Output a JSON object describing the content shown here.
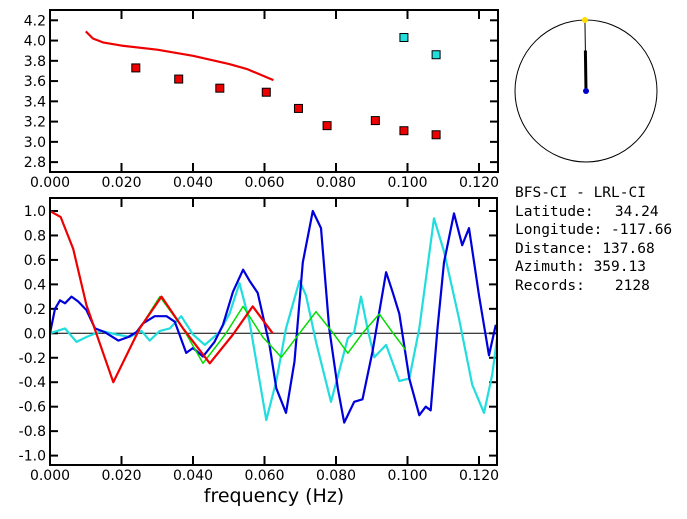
{
  "info": {
    "title": "BFS-CI  -  LRL-CI",
    "lines": [
      {
        "label": "Latitude:",
        "value": "34.24"
      },
      {
        "label": "Longitude:",
        "value": "-117.66"
      },
      {
        "label": "Distance:",
        "value": "137.68"
      },
      {
        "label": "Azimuth:",
        "value": "359.13"
      },
      {
        "label": "Records:",
        "value": "2128"
      }
    ]
  },
  "compass": {
    "azimuth_deg": 359.13,
    "colors": {
      "station": "#ffdd00",
      "center": "#0000cc"
    }
  },
  "chart_data": [
    {
      "type": "scatter",
      "title": "",
      "xlabel": "",
      "ylabel": "",
      "xlim": [
        0,
        0.125
      ],
      "ylim": [
        2.7,
        4.3
      ],
      "xticks": [
        "0.000",
        "0.020",
        "0.040",
        "0.060",
        "0.080",
        "0.100",
        "0.120"
      ],
      "yticks": [
        "2.8",
        "3.0",
        "3.2",
        "3.4",
        "3.6",
        "3.8",
        "4.0",
        "4.2"
      ],
      "series": [
        {
          "name": "model curve",
          "kind": "line",
          "color": "#ee0000",
          "x": [
            0.01,
            0.012,
            0.015,
            0.02,
            0.03,
            0.04,
            0.05,
            0.055,
            0.0625
          ],
          "y": [
            4.09,
            4.02,
            3.98,
            3.95,
            3.91,
            3.85,
            3.77,
            3.72,
            3.61
          ]
        },
        {
          "name": "measured (red)",
          "kind": "points",
          "color": "#ee0000",
          "x": [
            0.024,
            0.036,
            0.0475,
            0.0605,
            0.0695,
            0.0775,
            0.091,
            0.099,
            0.108
          ],
          "y": [
            3.73,
            3.62,
            3.53,
            3.49,
            3.33,
            3.16,
            3.21,
            3.11,
            3.07
          ]
        },
        {
          "name": "measured (cyan)",
          "kind": "points",
          "color": "#22dddd",
          "x": [
            0.099,
            0.108
          ],
          "y": [
            4.03,
            3.86
          ]
        }
      ]
    },
    {
      "type": "line",
      "title": "",
      "xlabel": "frequency (Hz)",
      "ylabel": "",
      "xlim": [
        0,
        0.125
      ],
      "ylim": [
        -1.1,
        1.1
      ],
      "xticks": [
        "0.000",
        "0.020",
        "0.040",
        "0.060",
        "0.080",
        "0.100",
        "0.120"
      ],
      "yticks": [
        "1.0",
        "0.8",
        "0.6",
        "0.4",
        "0.2",
        "0.0",
        "-0.2",
        "-0.4",
        "-0.6",
        "-0.8",
        "-1.0"
      ],
      "series": [
        {
          "name": "cyan",
          "color": "#22dddd",
          "x": [
            0,
            0.0042,
            0.0074,
            0.0102,
            0.0144,
            0.0186,
            0.0223,
            0.0256,
            0.0279,
            0.0307,
            0.0335,
            0.0367,
            0.04,
            0.0433,
            0.0474,
            0.0502,
            0.053,
            0.0558,
            0.0605,
            0.0633,
            0.066,
            0.0698,
            0.0716,
            0.0744,
            0.0786,
            0.0809,
            0.0833,
            0.0851,
            0.087,
            0.0888,
            0.0907,
            0.094,
            0.0977,
            0.1005,
            0.1033,
            0.1074,
            0.1102,
            0.1144,
            0.1181,
            0.1214,
            0.1237,
            0.1251
          ],
          "y": [
            0,
            0.04,
            -0.07,
            -0.03,
            0.02,
            -0.01,
            -0.03,
            0.02,
            -0.06,
            0.02,
            0.04,
            0.14,
            -0.01,
            -0.095,
            0.01,
            0.16,
            0.41,
            0.095,
            -0.71,
            -0.39,
            0.04,
            0.43,
            0.31,
            -0.07,
            -0.56,
            -0.31,
            -0.04,
            0.01,
            0.3,
            0.04,
            -0.196,
            -0.095,
            -0.39,
            -0.37,
            0.04,
            0.94,
            0.67,
            0.12,
            -0.42,
            -0.65,
            -0.34,
            -0.03
          ]
        },
        {
          "name": "blue",
          "color": "#0000dd",
          "x": [
            0,
            0.0014,
            0.0028,
            0.0042,
            0.006,
            0.0079,
            0.0102,
            0.0126,
            0.0153,
            0.0191,
            0.0219,
            0.0242,
            0.026,
            0.0293,
            0.0326,
            0.0349,
            0.0381,
            0.04,
            0.0428,
            0.046,
            0.0484,
            0.0512,
            0.054,
            0.0558,
            0.0581,
            0.0614,
            0.0633,
            0.066,
            0.0684,
            0.0707,
            0.0735,
            0.0758,
            0.0781,
            0.0805,
            0.0823,
            0.0851,
            0.0874,
            0.0902,
            0.094,
            0.0958,
            0.0977,
            0.1005,
            0.1033,
            0.1051,
            0.1065,
            0.1084,
            0.1102,
            0.113,
            0.1153,
            0.1172,
            0.12,
            0.1228,
            0.1247
          ],
          "y": [
            0,
            0.2,
            0.27,
            0.245,
            0.3,
            0.26,
            0.19,
            0.04,
            0.01,
            -0.06,
            -0.03,
            0.01,
            0.08,
            0.14,
            0.14,
            0.095,
            -0.16,
            -0.12,
            -0.19,
            -0.07,
            0.07,
            0.34,
            0.52,
            0.43,
            0.33,
            -0.095,
            -0.45,
            -0.65,
            -0.23,
            0.58,
            1.0,
            0.86,
            0.04,
            -0.45,
            -0.73,
            -0.56,
            -0.54,
            -0.15,
            0.5,
            0.34,
            0.16,
            -0.37,
            -0.67,
            -0.6,
            -0.63,
            0.04,
            0.58,
            0.98,
            0.72,
            0.86,
            0.31,
            -0.18,
            0.07
          ]
        },
        {
          "name": "green",
          "color": "#00dd00",
          "x": [
            0.0102,
            0.0177,
            0.0251,
            0.0307,
            0.0372,
            0.0428,
            0.049,
            0.054,
            0.0595,
            0.0647,
            0.0698,
            0.0744,
            0.079,
            0.0833,
            0.0874,
            0.0921,
            0.096,
            0.0995
          ],
          "y": [
            0.23,
            -0.4,
            0.04,
            0.3,
            0.04,
            -0.245,
            -0.01,
            0.22,
            -0.03,
            -0.196,
            0,
            0.177,
            0.01,
            -0.163,
            0,
            0.158,
            0,
            -0.136
          ]
        },
        {
          "name": "red",
          "color": "#ee0000",
          "x": [
            0,
            0.003,
            0.0065,
            0.0102,
            0.0177,
            0.0251,
            0.0312,
            0.0372,
            0.0447,
            0.0512,
            0.0567,
            0.0623
          ],
          "y": [
            1.0,
            0.95,
            0.69,
            0.23,
            -0.4,
            0.04,
            0.3,
            0.04,
            -0.245,
            -0.01,
            0.22,
            0
          ]
        }
      ]
    }
  ]
}
